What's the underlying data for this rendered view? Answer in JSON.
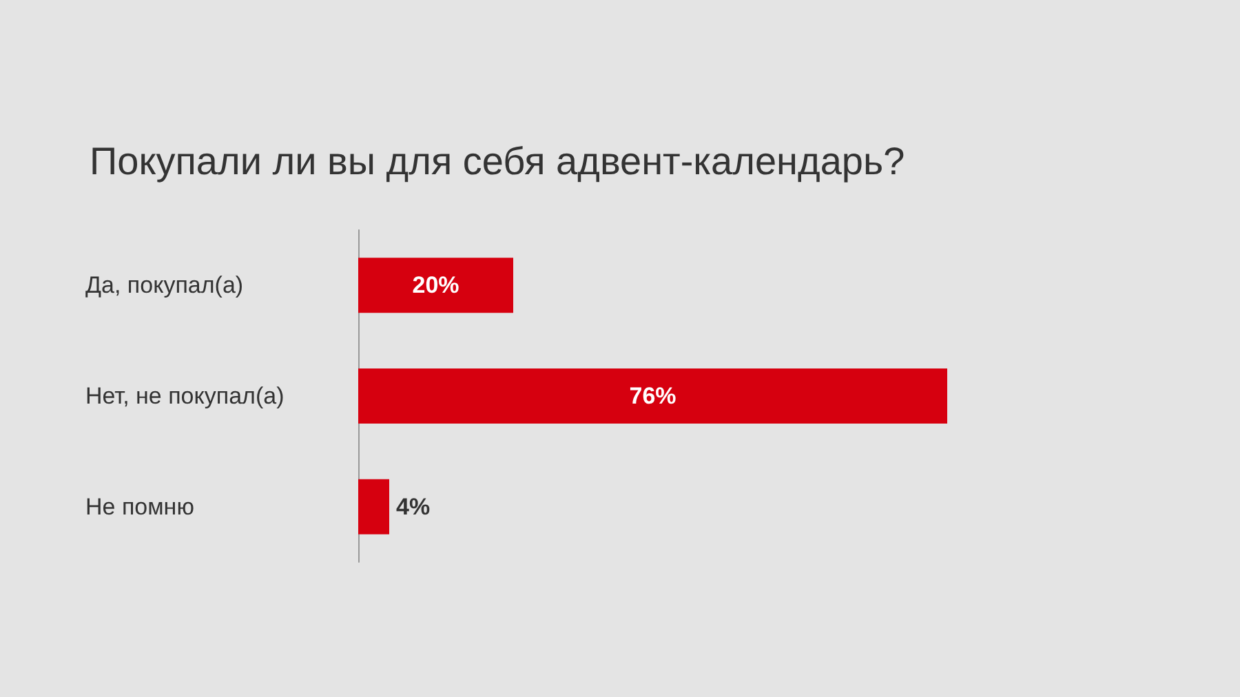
{
  "chart_data": {
    "type": "bar",
    "orientation": "horizontal",
    "title": "Покупали ли вы для себя адвент-календарь?",
    "categories": [
      "Да, покупал(а)",
      "Нет, не покупал(а)",
      "Не помню"
    ],
    "values": [
      20,
      76,
      4
    ],
    "color": "#d6000f",
    "value_labels": [
      "20%",
      "76%",
      "4%"
    ]
  }
}
